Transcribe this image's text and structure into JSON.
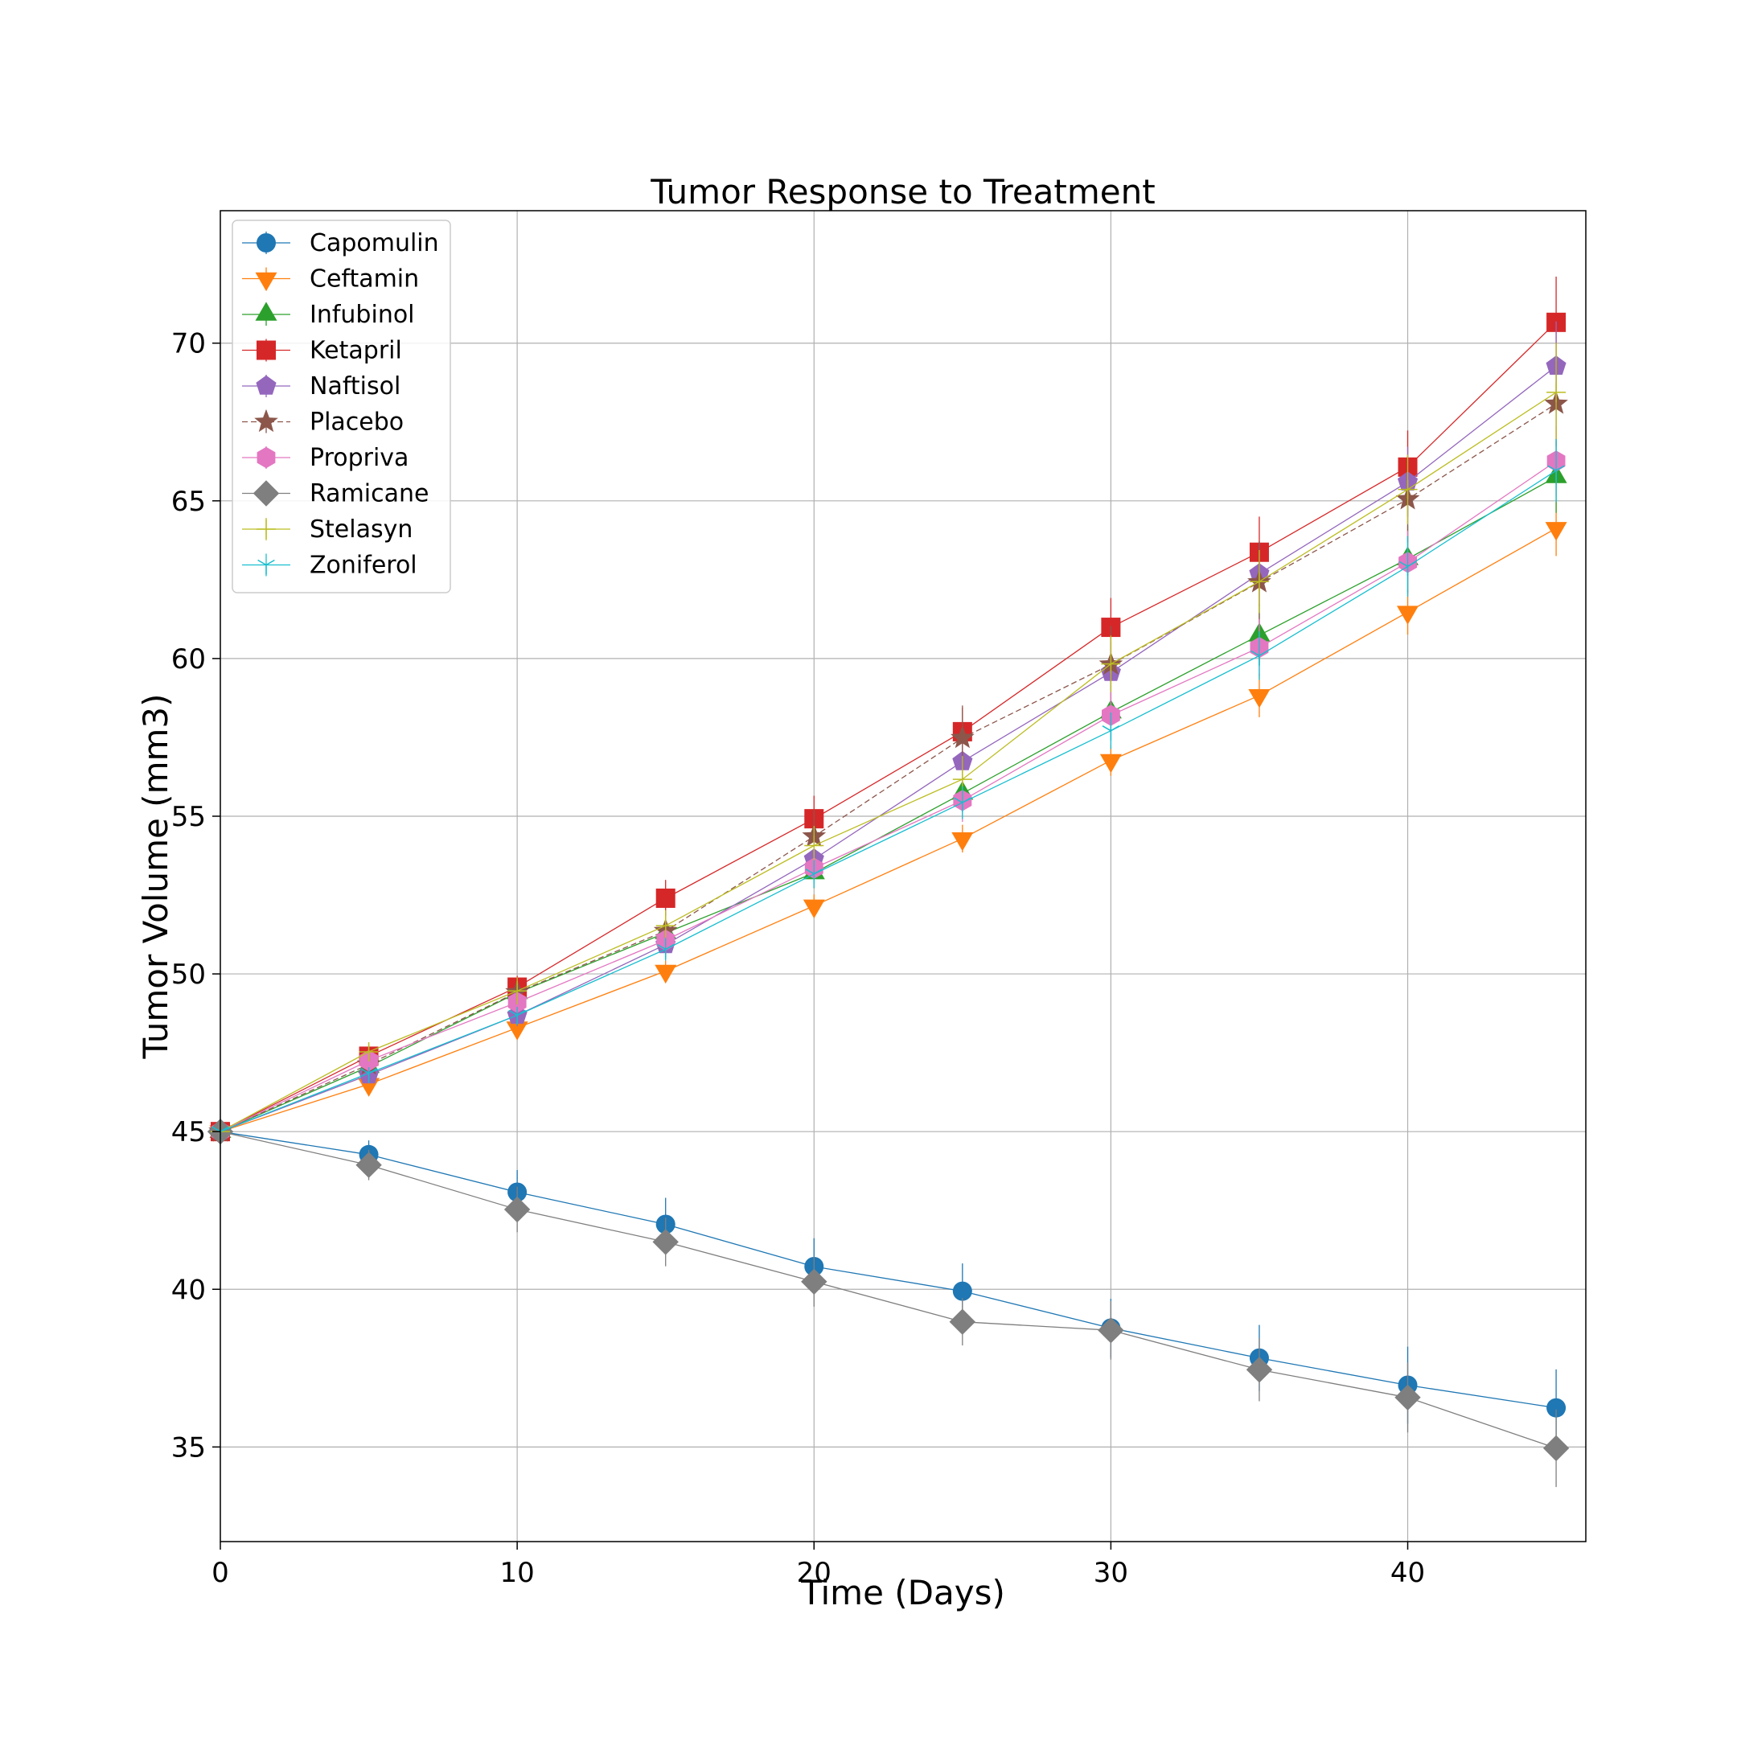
{
  "chart_data": {
    "type": "line",
    "title": "Tumor Response to Treatment",
    "xlabel": "Time (Days)",
    "ylabel": "Tumor Volume (mm3)",
    "xlim": [
      0,
      46
    ],
    "ylim": [
      32,
      74.2
    ],
    "xticks": [
      0,
      10,
      20,
      30,
      40
    ],
    "yticks": [
      35,
      40,
      45,
      50,
      55,
      60,
      65,
      70
    ],
    "grid": true,
    "legend_position": "upper-left",
    "x": [
      0,
      5,
      10,
      15,
      20,
      25,
      30,
      35,
      40,
      45
    ],
    "series": [
      {
        "name": "Capomulin",
        "color": "#1f77b4",
        "marker": "circle",
        "dashed": false,
        "values": [
          45.0,
          44.27,
          43.08,
          42.06,
          40.72,
          39.94,
          38.77,
          37.82,
          36.96,
          36.24
        ],
        "errors": [
          0,
          0.45,
          0.7,
          0.84,
          0.9,
          0.88,
          0.93,
          1.05,
          1.22,
          1.22
        ]
      },
      {
        "name": "Ceftamin",
        "color": "#ff7f0e",
        "marker": "triangle-down",
        "dashed": false,
        "values": [
          45.0,
          46.5,
          48.29,
          50.09,
          52.16,
          54.29,
          56.77,
          58.83,
          61.47,
          64.13
        ],
        "errors": [
          0,
          0.16,
          0.24,
          0.33,
          0.36,
          0.44,
          0.49,
          0.69,
          0.71,
          0.88
        ]
      },
      {
        "name": "Infubinol",
        "color": "#2ca02c",
        "marker": "triangle-up",
        "dashed": false,
        "values": [
          45.0,
          47.06,
          49.4,
          51.3,
          53.2,
          55.72,
          58.3,
          60.74,
          63.16,
          65.76
        ],
        "errors": [
          0,
          0.24,
          0.28,
          0.36,
          0.48,
          0.55,
          0.63,
          0.98,
          1.06,
          1.14
        ]
      },
      {
        "name": "Ketapril",
        "color": "#d62728",
        "marker": "square",
        "dashed": false,
        "values": [
          45.0,
          47.39,
          49.58,
          52.4,
          54.92,
          57.68,
          60.99,
          63.37,
          66.07,
          70.66
        ],
        "errors": [
          0,
          0.26,
          0.36,
          0.58,
          0.73,
          0.76,
          0.93,
          1.13,
          1.16,
          1.45
        ]
      },
      {
        "name": "Naftisol",
        "color": "#9467bd",
        "marker": "pentagon",
        "dashed": false,
        "values": [
          45.0,
          46.8,
          48.69,
          50.93,
          53.64,
          56.73,
          59.56,
          62.69,
          65.6,
          69.27
        ],
        "errors": [
          0,
          0.2,
          0.35,
          0.43,
          0.6,
          0.81,
          0.98,
          1.02,
          1.11,
          1.42
        ]
      },
      {
        "name": "Placebo",
        "color": "#8c564b",
        "marker": "star",
        "dashed": true,
        "values": [
          45.0,
          47.13,
          49.42,
          51.36,
          54.36,
          57.48,
          59.81,
          62.42,
          65.05,
          68.08
        ],
        "errors": [
          0,
          0.22,
          0.41,
          0.61,
          0.84,
          1.03,
          1.22,
          1.29,
          1.37,
          1.35
        ]
      },
      {
        "name": "Propriva",
        "color": "#e377c2",
        "marker": "hexagon",
        "dashed": false,
        "values": [
          45.0,
          47.25,
          49.1,
          51.07,
          53.35,
          55.5,
          58.2,
          60.35,
          63.05,
          66.26
        ],
        "errors": [
          0,
          0.23,
          0.38,
          0.5,
          0.6,
          0.68,
          0.8,
          0.9,
          1.0,
          1.1
        ]
      },
      {
        "name": "Ramicane",
        "color": "#7f7f7f",
        "marker": "diamond",
        "dashed": false,
        "values": [
          45.0,
          43.94,
          42.53,
          41.5,
          40.24,
          38.97,
          38.7,
          37.45,
          36.57,
          34.96
        ],
        "errors": [
          0,
          0.48,
          0.72,
          0.77,
          0.79,
          0.75,
          0.93,
          1.0,
          1.11,
          1.23
        ]
      },
      {
        "name": "Stelasyn",
        "color": "#bcbd22",
        "marker": "plus",
        "dashed": false,
        "values": [
          45.0,
          47.53,
          49.46,
          51.53,
          54.07,
          56.17,
          59.83,
          62.44,
          65.36,
          68.44
        ],
        "errors": [
          0,
          0.24,
          0.43,
          0.49,
          0.62,
          0.74,
          0.9,
          1.0,
          1.1,
          1.57
        ]
      },
      {
        "name": "Zoniferol",
        "color": "#17becf",
        "marker": "tri",
        "dashed": false,
        "values": [
          45.0,
          46.85,
          48.69,
          50.78,
          53.17,
          55.43,
          57.71,
          60.09,
          62.92,
          65.96
        ],
        "errors": [
          0,
          0.19,
          0.26,
          0.36,
          0.44,
          0.52,
          0.58,
          0.77,
          0.96,
          1.0
        ]
      }
    ]
  }
}
